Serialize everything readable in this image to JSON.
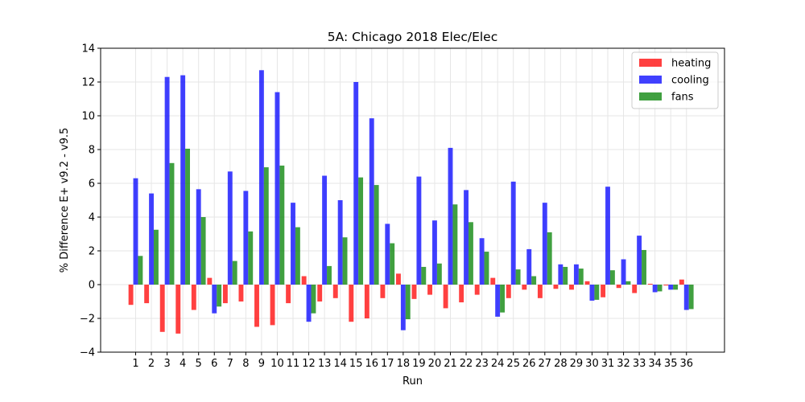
{
  "chart_data": {
    "type": "bar",
    "title": "5A: Chicago 2018 Elec/Elec",
    "xlabel": "Run",
    "ylabel": "% Difference E+ v9.2 - v9.5",
    "ylim": [
      -4,
      14
    ],
    "yticks": [
      -4,
      -2,
      0,
      2,
      4,
      6,
      8,
      10,
      12,
      14
    ],
    "grid": true,
    "legend_position": "top-right",
    "categories": [
      "1",
      "2",
      "3",
      "4",
      "5",
      "6",
      "7",
      "8",
      "9",
      "10",
      "11",
      "12",
      "13",
      "14",
      "15",
      "16",
      "17",
      "18",
      "19",
      "20",
      "21",
      "22",
      "23",
      "24",
      "25",
      "26",
      "27",
      "28",
      "29",
      "30",
      "31",
      "32",
      "33",
      "34",
      "35",
      "36"
    ],
    "series": [
      {
        "name": "heating",
        "color": "#ff0000",
        "values": [
          -1.2,
          -1.1,
          -2.8,
          -2.9,
          -1.5,
          0.4,
          -1.1,
          -1.0,
          -2.5,
          -2.4,
          -1.1,
          0.5,
          -1.0,
          -0.8,
          -2.2,
          -2.0,
          -0.8,
          0.65,
          -0.85,
          -0.6,
          -1.4,
          -1.05,
          -0.6,
          0.4,
          -0.8,
          -0.3,
          -0.8,
          -0.25,
          -0.3,
          0.2,
          -0.75,
          -0.2,
          -0.5,
          0.05,
          -0.05,
          0.3
        ]
      },
      {
        "name": "cooling",
        "color": "#0000ff",
        "values": [
          6.3,
          5.4,
          12.3,
          12.4,
          5.65,
          -1.7,
          6.7,
          5.55,
          12.7,
          11.4,
          4.85,
          -2.2,
          6.45,
          5.0,
          12.0,
          9.85,
          3.6,
          -2.7,
          6.4,
          3.8,
          8.1,
          5.6,
          2.75,
          -1.9,
          6.1,
          2.1,
          4.85,
          1.2,
          1.2,
          -0.95,
          5.8,
          1.5,
          2.9,
          -0.45,
          -0.3,
          -1.5
        ]
      },
      {
        "name": "fans",
        "color": "#008000",
        "values": [
          1.7,
          3.25,
          7.2,
          8.05,
          4.0,
          -1.3,
          1.4,
          3.15,
          6.95,
          7.05,
          3.4,
          -1.7,
          1.1,
          2.8,
          6.35,
          5.9,
          2.45,
          -2.05,
          1.05,
          1.25,
          4.75,
          3.7,
          1.95,
          -1.65,
          0.9,
          0.5,
          3.1,
          1.05,
          0.95,
          -0.9,
          0.85,
          0.2,
          2.05,
          -0.4,
          -0.3,
          -1.45
        ]
      }
    ]
  }
}
